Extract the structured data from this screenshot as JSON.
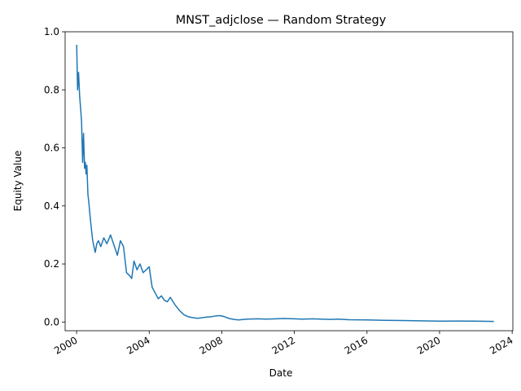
{
  "chart_data": {
    "type": "line",
    "title": "MNST_adjclose — Random Strategy",
    "xlabel": "Date",
    "ylabel": "Equity Value",
    "x_axis_type": "date",
    "xlim": [
      "1999-05-15",
      "2024-01-15"
    ],
    "ylim": [
      -0.03,
      1.0
    ],
    "x_ticks": [
      "2000",
      "2004",
      "2008",
      "2012",
      "2016",
      "2020",
      "2024"
    ],
    "y_ticks": [
      "0.0",
      "0.2",
      "0.4",
      "0.6",
      "0.8",
      "1.0"
    ],
    "grid": false,
    "line_color": "#1f77b4",
    "series": [
      {
        "x": [
          "2000-01-03",
          "2000-01-20",
          "2000-02-10",
          "2000-03-01",
          "2000-03-20",
          "2000-04-10",
          "2000-05-01",
          "2000-05-20",
          "2000-06-10",
          "2000-06-25",
          "2000-07-10",
          "2000-07-25",
          "2000-08-15",
          "2000-09-05",
          "2000-10-01",
          "2000-10-25",
          "2000-11-20",
          "2000-12-15",
          "2001-01-10",
          "2001-02-10",
          "2001-03-15",
          "2001-05-01",
          "2001-07-01",
          "2001-09-01",
          "2001-11-15",
          "2002-02-01",
          "2002-04-01",
          "2002-06-01",
          "2002-08-01",
          "2002-10-01",
          "2002-12-01",
          "2003-01-15",
          "2003-03-01",
          "2003-05-01",
          "2003-07-01",
          "2003-09-01",
          "2003-11-01",
          "2004-01-01",
          "2004-03-01",
          "2004-05-01",
          "2004-07-01",
          "2004-09-01",
          "2004-11-01",
          "2005-01-01",
          "2005-03-01",
          "2005-06-01",
          "2005-09-01",
          "2005-12-01",
          "2006-03-01",
          "2006-06-01",
          "2006-09-01",
          "2006-12-01",
          "2007-03-01",
          "2007-06-01",
          "2007-09-01",
          "2007-12-01",
          "2008-03-01",
          "2008-06-01",
          "2008-09-01",
          "2008-12-01",
          "2009-06-01",
          "2010-01-01",
          "2010-06-01",
          "2011-01-01",
          "2011-06-01",
          "2012-01-01",
          "2012-06-01",
          "2013-01-01",
          "2013-06-01",
          "2014-01-01",
          "2014-06-01",
          "2015-01-01",
          "2016-01-01",
          "2017-01-01",
          "2018-01-01",
          "2019-01-01",
          "2020-01-01",
          "2021-01-01",
          "2022-01-01",
          "2022-12-30"
        ],
        "values": [
          0.955,
          0.8,
          0.86,
          0.78,
          0.74,
          0.69,
          0.55,
          0.65,
          0.53,
          0.55,
          0.51,
          0.54,
          0.44,
          0.41,
          0.36,
          0.32,
          0.28,
          0.26,
          0.24,
          0.27,
          0.28,
          0.26,
          0.29,
          0.27,
          0.3,
          0.26,
          0.23,
          0.28,
          0.26,
          0.17,
          0.16,
          0.15,
          0.21,
          0.18,
          0.2,
          0.17,
          0.18,
          0.19,
          0.12,
          0.1,
          0.08,
          0.09,
          0.075,
          0.07,
          0.085,
          0.06,
          0.04,
          0.025,
          0.018,
          0.015,
          0.013,
          0.015,
          0.017,
          0.018,
          0.021,
          0.022,
          0.018,
          0.012,
          0.009,
          0.007,
          0.01,
          0.011,
          0.01,
          0.011,
          0.012,
          0.011,
          0.01,
          0.011,
          0.01,
          0.009,
          0.01,
          0.008,
          0.007,
          0.006,
          0.005,
          0.004,
          0.003,
          0.0035,
          0.003,
          0.002
        ]
      }
    ]
  }
}
